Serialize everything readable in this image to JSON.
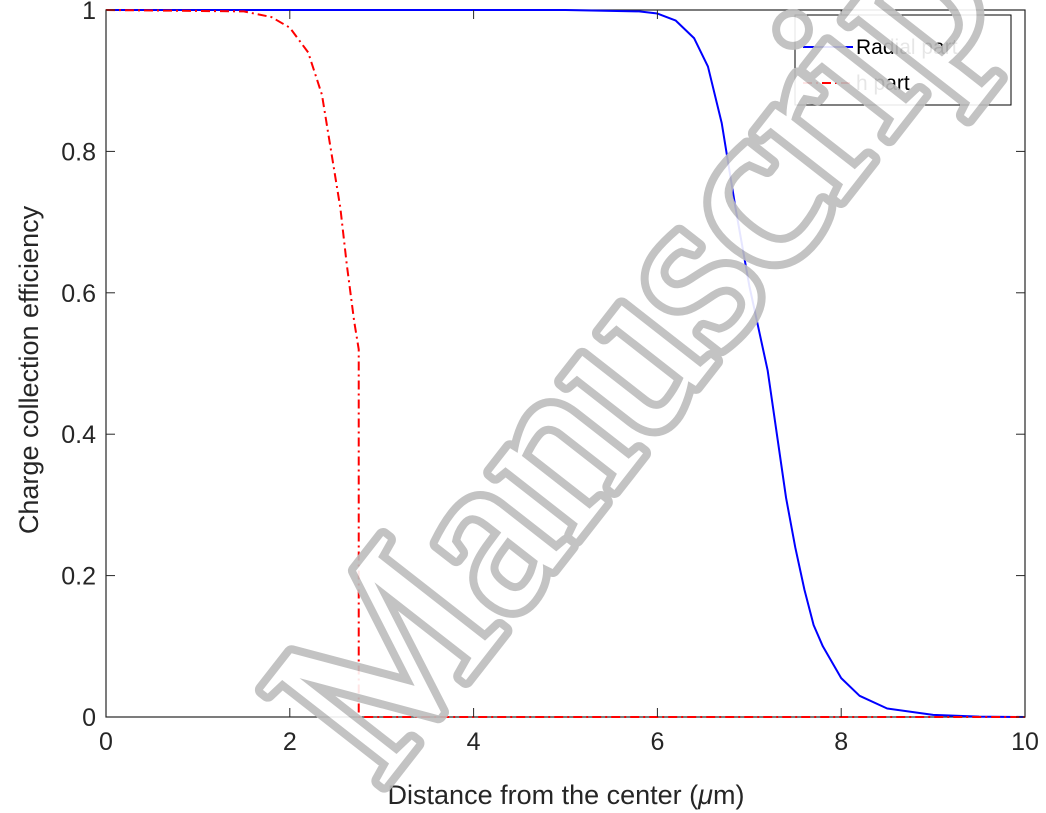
{
  "watermark": {
    "text": "Manuscript"
  },
  "chart_data": {
    "type": "line",
    "title": "",
    "xlabel_main": "Distance from the center (",
    "xlabel_mu": "μ",
    "xlabel_tail": "m)",
    "ylabel": "Charge collection efficiency",
    "xlim": [
      0,
      10
    ],
    "ylim": [
      0,
      1
    ],
    "xticks": [
      {
        "value": 0,
        "label": "0"
      },
      {
        "value": 2,
        "label": "2"
      },
      {
        "value": 4,
        "label": "4"
      },
      {
        "value": 6,
        "label": "6"
      },
      {
        "value": 8,
        "label": "8"
      },
      {
        "value": 10,
        "label": "10"
      }
    ],
    "yticks": [
      {
        "value": 0,
        "label": "0"
      },
      {
        "value": 0.2,
        "label": "0.2"
      },
      {
        "value": 0.4,
        "label": "0.4"
      },
      {
        "value": 0.6,
        "label": "0.6"
      },
      {
        "value": 0.8,
        "label": "0.8"
      },
      {
        "value": 1,
        "label": "1"
      }
    ],
    "grid": false,
    "legend_position": "top-right",
    "series": [
      {
        "name": "Radial part",
        "color": "#0000ff",
        "style": "solid",
        "points": [
          [
            0,
            1
          ],
          [
            5,
            1
          ],
          [
            5.8,
            0.998
          ],
          [
            6.0,
            0.995
          ],
          [
            6.2,
            0.985
          ],
          [
            6.4,
            0.96
          ],
          [
            6.55,
            0.92
          ],
          [
            6.7,
            0.84
          ],
          [
            6.85,
            0.72
          ],
          [
            7.0,
            0.61
          ],
          [
            7.1,
            0.55
          ],
          [
            7.2,
            0.49
          ],
          [
            7.3,
            0.4
          ],
          [
            7.4,
            0.31
          ],
          [
            7.5,
            0.24
          ],
          [
            7.6,
            0.18
          ],
          [
            7.7,
            0.13
          ],
          [
            7.8,
            0.1
          ],
          [
            8.0,
            0.055
          ],
          [
            8.2,
            0.03
          ],
          [
            8.5,
            0.012
          ],
          [
            9.0,
            0.003
          ],
          [
            9.5,
            0.0005
          ],
          [
            10,
            0
          ]
        ]
      },
      {
        "name": "h part",
        "color": "#ff0000",
        "style": "dashdot",
        "points": [
          [
            0,
            1
          ],
          [
            1.5,
            0.998
          ],
          [
            1.8,
            0.99
          ],
          [
            2.0,
            0.975
          ],
          [
            2.2,
            0.94
          ],
          [
            2.35,
            0.88
          ],
          [
            2.45,
            0.8
          ],
          [
            2.55,
            0.72
          ],
          [
            2.62,
            0.64
          ],
          [
            2.7,
            0.56
          ],
          [
            2.75,
            0.52
          ],
          [
            2.75,
            0.0
          ],
          [
            10,
            0
          ]
        ]
      }
    ]
  }
}
